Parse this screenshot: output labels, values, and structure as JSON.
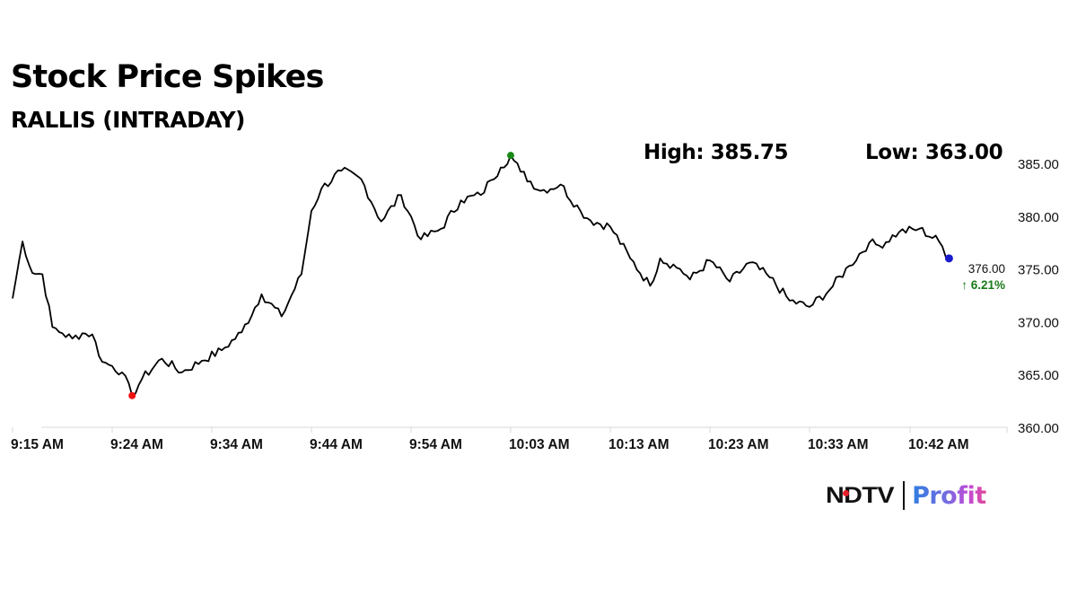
{
  "header": {
    "title": "Stock Price Spikes",
    "subtitle": "RALLIS (INTRADAY)"
  },
  "stats": {
    "high_label": "High: 385.75",
    "low_label": "Low: 363.00",
    "high": 385.75,
    "low": 363.0
  },
  "last": {
    "price": "376.00",
    "change": "↑ 6.21%",
    "change_color": "#1a7a1a"
  },
  "markers": {
    "high_color": "#1a8a1a",
    "low_color": "#ee1111",
    "last_color": "#1a1acc"
  },
  "logo": {
    "brand": "NDTV",
    "product": "Profit"
  },
  "chart_data": {
    "type": "line",
    "title": "Stock Price Spikes",
    "subtitle": "RALLIS (INTRADAY)",
    "xlabel": "",
    "ylabel": "",
    "ylim": [
      360,
      385
    ],
    "y_ticks": [
      "385.00",
      "380.00",
      "375.00",
      "370.00",
      "365.00",
      "360.00"
    ],
    "x_ticks": [
      "9:15 AM",
      "9:24 AM",
      "9:34 AM",
      "9:44 AM",
      "9:54 AM",
      "10:03 AM",
      "10:13 AM",
      "10:23 AM",
      "10:33 AM",
      "10:42 AM"
    ],
    "grid": false,
    "legend": "none",
    "y_axis_position": "right",
    "annotations": [
      {
        "text": "High: 385.75",
        "type": "label"
      },
      {
        "text": "Low: 363.00",
        "type": "label"
      },
      {
        "text": "376.00",
        "type": "last-value"
      },
      {
        "text": "↑ 6.21%",
        "type": "change"
      }
    ],
    "series": [
      {
        "name": "RALLIS",
        "x": [
          "9:15",
          "9:16",
          "9:17",
          "9:18",
          "9:19",
          "9:20",
          "9:21",
          "9:22",
          "9:23",
          "9:24",
          "9:25",
          "9:26",
          "9:27",
          "9:28",
          "9:30",
          "9:32",
          "9:34",
          "9:36",
          "9:38",
          "9:40",
          "9:42",
          "9:44",
          "9:45",
          "9:46",
          "9:48",
          "9:50",
          "9:52",
          "9:54",
          "9:56",
          "9:58",
          "10:00",
          "10:02",
          "10:03",
          "10:04",
          "10:05",
          "10:06",
          "10:08",
          "10:10",
          "10:12",
          "10:13",
          "10:15",
          "10:17",
          "10:19",
          "10:20",
          "10:22",
          "10:23",
          "10:25",
          "10:27",
          "10:29",
          "10:31",
          "10:33",
          "10:35",
          "10:37",
          "10:39",
          "10:41",
          "10:42",
          "10:44",
          "10:46",
          "10:48",
          "10:49"
        ],
        "values": [
          372.2,
          377.6,
          374.6,
          374.5,
          369.5,
          368.9,
          368.4,
          368.9,
          368.8,
          366.2,
          365.8,
          365.2,
          363.0,
          364.6,
          366.5,
          365.2,
          366.3,
          367.3,
          369.0,
          372.6,
          370.5,
          374.5,
          380.5,
          382.6,
          384.3,
          383.5,
          379.5,
          382.0,
          377.8,
          378.8,
          381.5,
          382.0,
          383.4,
          384.6,
          385.75,
          384.2,
          382.4,
          383.0,
          380.5,
          379.6,
          379.0,
          376.0,
          373.4,
          376.0,
          375.0,
          374.0,
          375.8,
          373.8,
          375.6,
          374.2,
          372.0,
          371.4,
          373.0,
          375.3,
          377.5,
          377.2,
          378.5,
          378.8,
          377.6,
          376.0
        ]
      }
    ]
  }
}
